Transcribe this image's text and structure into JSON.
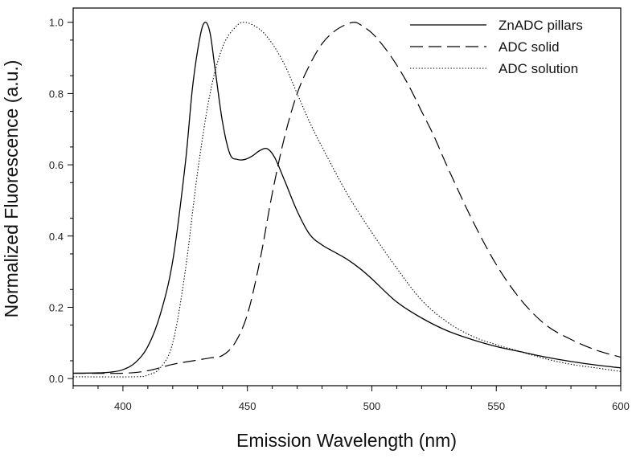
{
  "chart_data": {
    "type": "line",
    "title": "",
    "xlabel": "Emission Wavelength (nm)",
    "ylabel": "Normalized Fluorescence (a.u.)",
    "xlim": [
      380,
      600
    ],
    "ylim": [
      -0.02,
      1.04
    ],
    "x_ticks": [
      400,
      450,
      500,
      550,
      600
    ],
    "y_ticks": [
      0.0,
      0.2,
      0.4,
      0.6,
      0.8,
      1.0
    ],
    "y_tick_labels": [
      "0.0",
      "0.2",
      "0.4",
      "0.6",
      "0.8",
      "1.0"
    ],
    "grid": false,
    "legend_position": "top-right",
    "series": [
      {
        "name": "ZnADC pillars",
        "dash": "solid",
        "x": [
          380,
          390,
          395,
          400,
          405,
          410,
          415,
          420,
          425,
          428,
          431,
          433,
          435,
          437,
          440,
          443,
          446,
          449,
          452,
          455,
          458,
          461,
          465,
          470,
          475,
          480,
          485,
          490,
          495,
          500,
          510,
          520,
          530,
          540,
          550,
          560,
          570,
          580,
          590,
          600
        ],
        "y": [
          0.015,
          0.016,
          0.018,
          0.025,
          0.045,
          0.09,
          0.18,
          0.33,
          0.6,
          0.82,
          0.96,
          1.0,
          0.97,
          0.87,
          0.72,
          0.63,
          0.615,
          0.615,
          0.625,
          0.64,
          0.645,
          0.62,
          0.555,
          0.47,
          0.405,
          0.375,
          0.355,
          0.335,
          0.31,
          0.28,
          0.215,
          0.17,
          0.135,
          0.11,
          0.09,
          0.075,
          0.06,
          0.048,
          0.038,
          0.03
        ]
      },
      {
        "name": "ADC solid",
        "dash": "dashed",
        "x": [
          380,
          400,
          410,
          420,
          430,
          435,
          440,
          445,
          450,
          455,
          460,
          465,
          470,
          475,
          480,
          485,
          490,
          493,
          495,
          500,
          505,
          510,
          515,
          520,
          525,
          530,
          540,
          550,
          560,
          570,
          580,
          590,
          600
        ],
        "y": [
          0.015,
          0.015,
          0.022,
          0.04,
          0.052,
          0.058,
          0.065,
          0.1,
          0.18,
          0.33,
          0.52,
          0.68,
          0.8,
          0.88,
          0.94,
          0.975,
          0.995,
          1.0,
          0.995,
          0.97,
          0.93,
          0.88,
          0.82,
          0.75,
          0.68,
          0.6,
          0.45,
          0.32,
          0.22,
          0.15,
          0.11,
          0.08,
          0.06
        ]
      },
      {
        "name": "ADC solution",
        "dash": "dotted",
        "x": [
          380,
          405,
          410,
          415,
          420,
          425,
          430,
          435,
          440,
          445,
          449,
          455,
          460,
          465,
          470,
          475,
          480,
          490,
          500,
          510,
          520,
          530,
          540,
          550,
          560,
          570,
          580,
          590,
          600
        ],
        "y": [
          0.005,
          0.005,
          0.01,
          0.03,
          0.1,
          0.3,
          0.58,
          0.8,
          0.93,
          0.985,
          1.0,
          0.98,
          0.94,
          0.88,
          0.8,
          0.72,
          0.65,
          0.52,
          0.41,
          0.31,
          0.22,
          0.16,
          0.12,
          0.095,
          0.075,
          0.055,
          0.04,
          0.03,
          0.02
        ]
      }
    ]
  }
}
